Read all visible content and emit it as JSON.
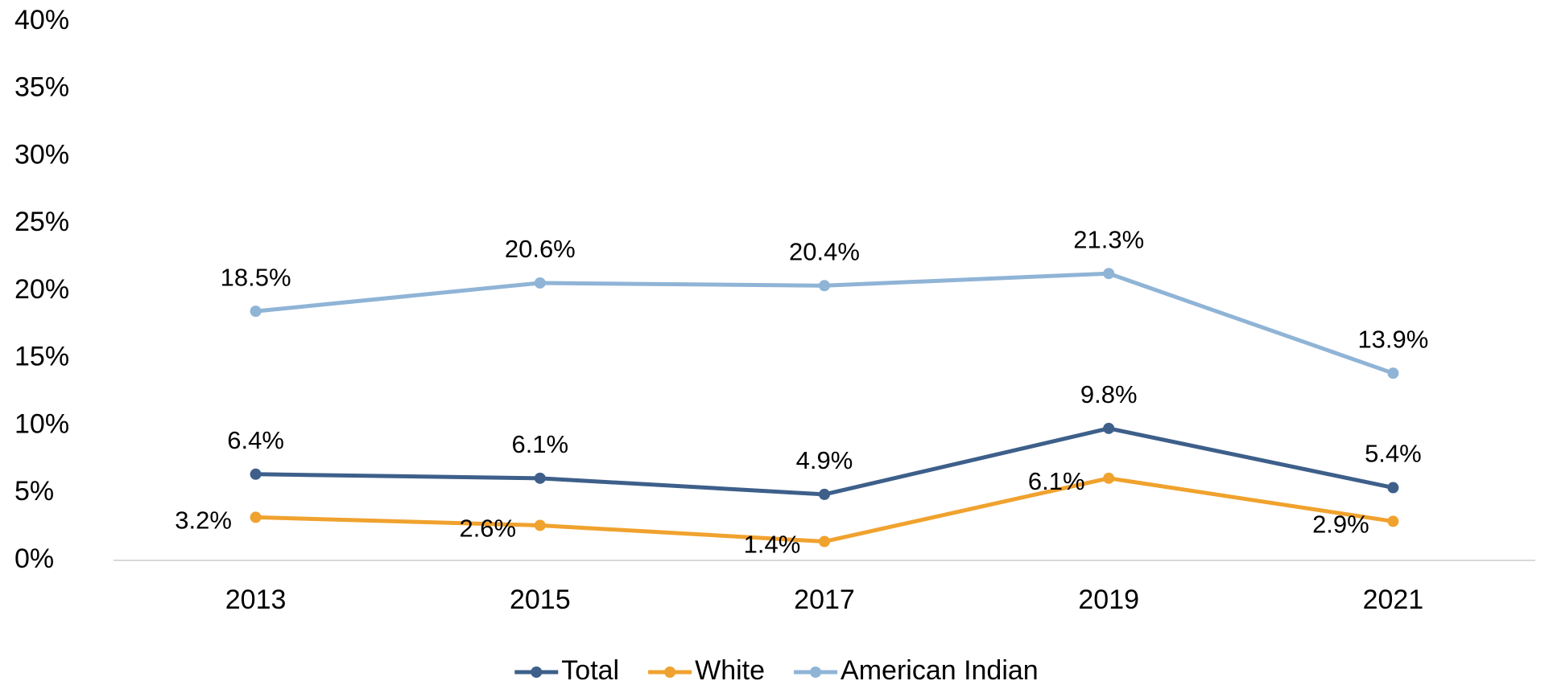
{
  "chart_data": {
    "type": "line",
    "categories": [
      "2013",
      "2015",
      "2017",
      "2019",
      "2021"
    ],
    "series": [
      {
        "name": "Total",
        "color": "#3d5f8a",
        "values": [
          6.4,
          6.1,
          4.9,
          9.8,
          5.4
        ],
        "value_labels": [
          "6.4%",
          "6.1%",
          "4.9%",
          "9.8%",
          "5.4%"
        ]
      },
      {
        "name": "White",
        "color": "#f0a22e",
        "values": [
          3.2,
          2.6,
          1.4,
          6.1,
          2.9
        ],
        "value_labels": [
          "3.2%",
          "2.6%",
          "1.4%",
          "6.1%",
          "2.9%"
        ]
      },
      {
        "name": "American Indian",
        "color": "#8fb4d6",
        "values": [
          18.5,
          20.6,
          20.4,
          21.3,
          13.9
        ],
        "value_labels": [
          "18.5%",
          "20.6%",
          "20.4%",
          "21.3%",
          "13.9%"
        ]
      }
    ],
    "ylim": [
      0,
      40
    ],
    "yticks": [
      {
        "value": 0,
        "label": "0%"
      },
      {
        "value": 5,
        "label": "5%"
      },
      {
        "value": 10,
        "label": "10%"
      },
      {
        "value": 15,
        "label": "15%"
      },
      {
        "value": 20,
        "label": "20%"
      },
      {
        "value": 25,
        "label": "25%"
      },
      {
        "value": 30,
        "label": "30%"
      },
      {
        "value": 35,
        "label": "35%"
      },
      {
        "value": 40,
        "label": "40%"
      }
    ],
    "legend": "bottom"
  }
}
